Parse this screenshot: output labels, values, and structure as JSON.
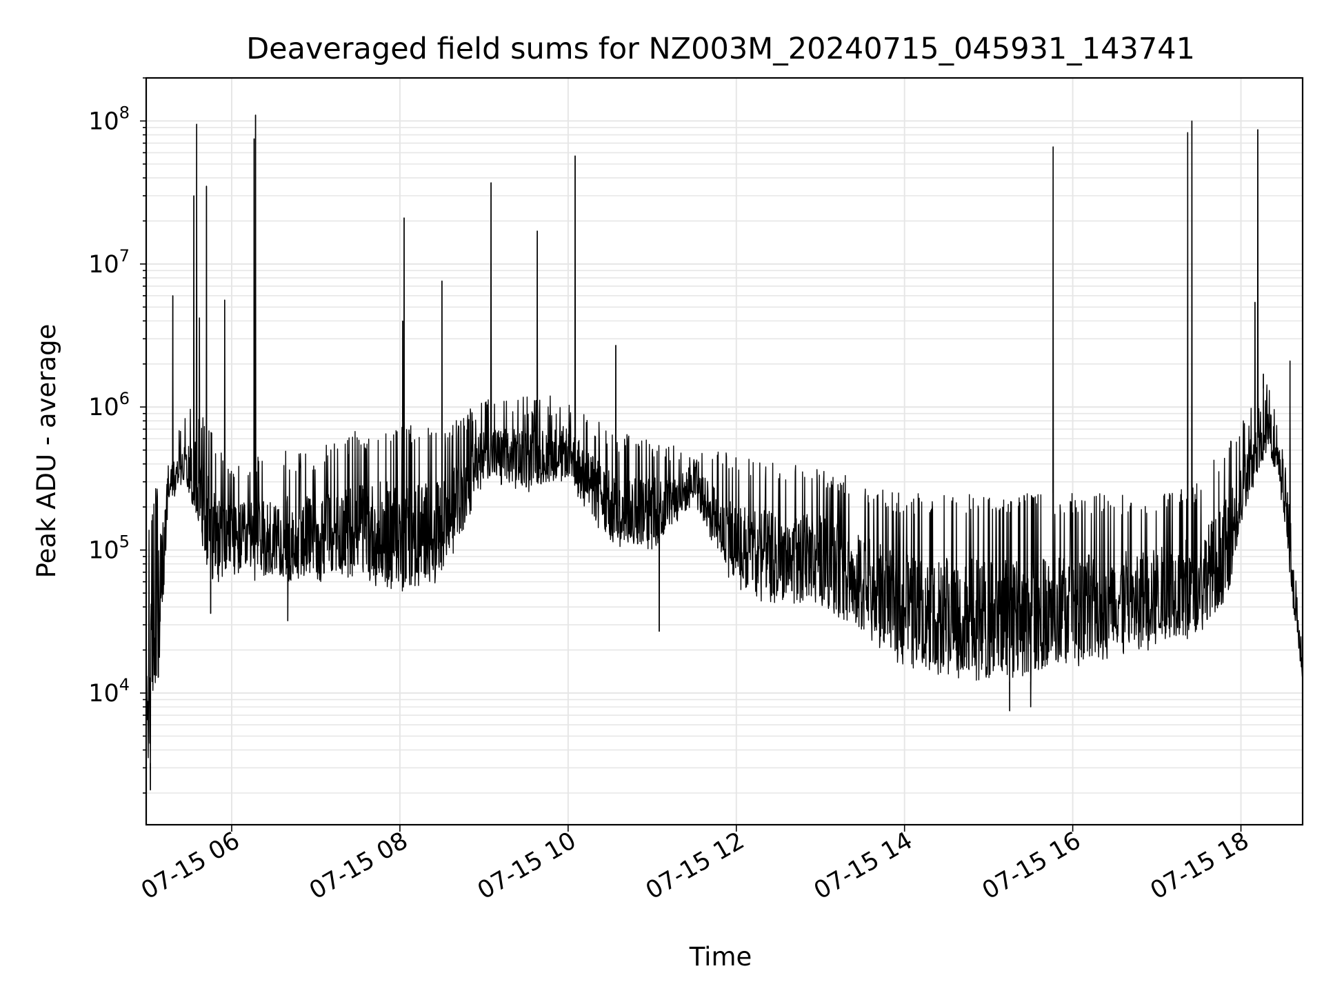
{
  "chart_data": {
    "type": "line",
    "title": "Deaveraged field sums for NZ003M_20240715_045931_143741",
    "xlabel": "Time",
    "ylabel": "Peak ADU - average",
    "yscale": "log",
    "ylim": [
      1200,
      200000000
    ],
    "xlim": [
      "07-15 04:59",
      "07-15 18:44"
    ],
    "grid": true,
    "legend": "none",
    "line_color": "#000000",
    "x_ticks": [
      {
        "value": "07-15 06:00",
        "label": "07-15 06"
      },
      {
        "value": "07-15 08:00",
        "label": "07-15 08"
      },
      {
        "value": "07-15 10:00",
        "label": "07-15 10"
      },
      {
        "value": "07-15 12:00",
        "label": "07-15 12"
      },
      {
        "value": "07-15 14:00",
        "label": "07-15 14"
      },
      {
        "value": "07-15 16:00",
        "label": "07-15 16"
      },
      {
        "value": "07-15 18:00",
        "label": "07-15 18"
      }
    ],
    "y_ticks": [
      {
        "value": 10000,
        "base": "10",
        "exp": "4"
      },
      {
        "value": 100000,
        "base": "10",
        "exp": "5"
      },
      {
        "value": 1000000,
        "base": "10",
        "exp": "6"
      },
      {
        "value": 10000000,
        "base": "10",
        "exp": "7"
      },
      {
        "value": 100000000,
        "base": "10",
        "exp": "8"
      }
    ],
    "envelope": [
      {
        "t": "07-15 04:59",
        "low": 3000,
        "high": 100000
      },
      {
        "t": "07-15 05:05",
        "low": 3500,
        "high": 300000
      },
      {
        "t": "07-15 05:15",
        "low": 200000,
        "high": 500000
      },
      {
        "t": "07-15 05:25",
        "low": 300000,
        "high": 800000
      },
      {
        "t": "07-15 05:35",
        "low": 150000,
        "high": 1200000
      },
      {
        "t": "07-15 05:45",
        "low": 60000,
        "high": 700000
      },
      {
        "t": "07-15 06:00",
        "low": 60000,
        "high": 400000
      },
      {
        "t": "07-15 06:30",
        "low": 60000,
        "high": 500000
      },
      {
        "t": "07-15 07:00",
        "low": 60000,
        "high": 500000
      },
      {
        "t": "07-15 07:30",
        "low": 60000,
        "high": 700000
      },
      {
        "t": "07-15 08:00",
        "low": 50000,
        "high": 800000
      },
      {
        "t": "07-15 08:30",
        "low": 60000,
        "high": 700000
      },
      {
        "t": "07-15 09:00",
        "low": 300000,
        "high": 1200000
      },
      {
        "t": "07-15 09:30",
        "low": 250000,
        "high": 1200000
      },
      {
        "t": "07-15 10:00",
        "low": 300000,
        "high": 1200000
      },
      {
        "t": "07-15 10:30",
        "low": 100000,
        "high": 700000
      },
      {
        "t": "07-15 11:00",
        "low": 100000,
        "high": 600000
      },
      {
        "t": "07-15 11:30",
        "low": 200000,
        "high": 500000
      },
      {
        "t": "07-15 12:00",
        "low": 50000,
        "high": 500000
      },
      {
        "t": "07-15 12:30",
        "low": 40000,
        "high": 400000
      },
      {
        "t": "07-15 13:00",
        "low": 40000,
        "high": 400000
      },
      {
        "t": "07-15 13:30",
        "low": 25000,
        "high": 300000
      },
      {
        "t": "07-15 14:00",
        "low": 15000,
        "high": 250000
      },
      {
        "t": "07-15 14:30",
        "low": 13000,
        "high": 250000
      },
      {
        "t": "07-15 15:00",
        "low": 12000,
        "high": 250000
      },
      {
        "t": "07-15 15:30",
        "low": 12000,
        "high": 250000
      },
      {
        "t": "07-15 16:00",
        "low": 15000,
        "high": 250000
      },
      {
        "t": "07-15 16:30",
        "low": 18000,
        "high": 250000
      },
      {
        "t": "07-15 17:00",
        "low": 20000,
        "high": 250000
      },
      {
        "t": "07-15 17:30",
        "low": 25000,
        "high": 300000
      },
      {
        "t": "07-15 17:50",
        "low": 40000,
        "high": 600000
      },
      {
        "t": "07-15 18:05",
        "low": 200000,
        "high": 1000000
      },
      {
        "t": "07-15 18:20",
        "low": 500000,
        "high": 1500000
      },
      {
        "t": "07-15 18:30",
        "low": 200000,
        "high": 600000
      },
      {
        "t": "07-15 18:38",
        "low": 30000,
        "high": 100000
      },
      {
        "t": "07-15 18:44",
        "low": 12000,
        "high": 20000
      }
    ],
    "spikes": [
      {
        "t": "07-15 05:18",
        "value": 6000000
      },
      {
        "t": "07-15 05:33",
        "value": 30000000
      },
      {
        "t": "07-15 05:35",
        "value": 95000000
      },
      {
        "t": "07-15 05:37",
        "value": 4200000
      },
      {
        "t": "07-15 05:42",
        "value": 35000000
      },
      {
        "t": "07-15 05:55",
        "value": 5600000
      },
      {
        "t": "07-15 06:16",
        "value": 75000000
      },
      {
        "t": "07-15 06:17",
        "value": 110000000
      },
      {
        "t": "07-15 08:02",
        "value": 4000000
      },
      {
        "t": "07-15 08:03",
        "value": 21000000
      },
      {
        "t": "07-15 08:30",
        "value": 7600000
      },
      {
        "t": "07-15 09:05",
        "value": 37000000
      },
      {
        "t": "07-15 09:38",
        "value": 17000000
      },
      {
        "t": "07-15 10:05",
        "value": 57000000
      },
      {
        "t": "07-15 10:34",
        "value": 2700000
      },
      {
        "t": "07-15 15:46",
        "value": 66000000
      },
      {
        "t": "07-15 17:22",
        "value": 83000000
      },
      {
        "t": "07-15 17:25",
        "value": 100000000
      },
      {
        "t": "07-15 18:10",
        "value": 5400000
      },
      {
        "t": "07-15 18:12",
        "value": 87000000
      },
      {
        "t": "07-15 18:16",
        "value": 1700000
      },
      {
        "t": "07-15 18:35",
        "value": 2100000
      }
    ],
    "dips": [
      {
        "t": "07-15 05:02",
        "value": 2100
      },
      {
        "t": "07-15 05:45",
        "value": 36000
      },
      {
        "t": "07-15 06:40",
        "value": 32000
      },
      {
        "t": "07-15 11:05",
        "value": 27000
      },
      {
        "t": "07-15 15:15",
        "value": 7500
      },
      {
        "t": "07-15 15:30",
        "value": 8000
      }
    ]
  }
}
